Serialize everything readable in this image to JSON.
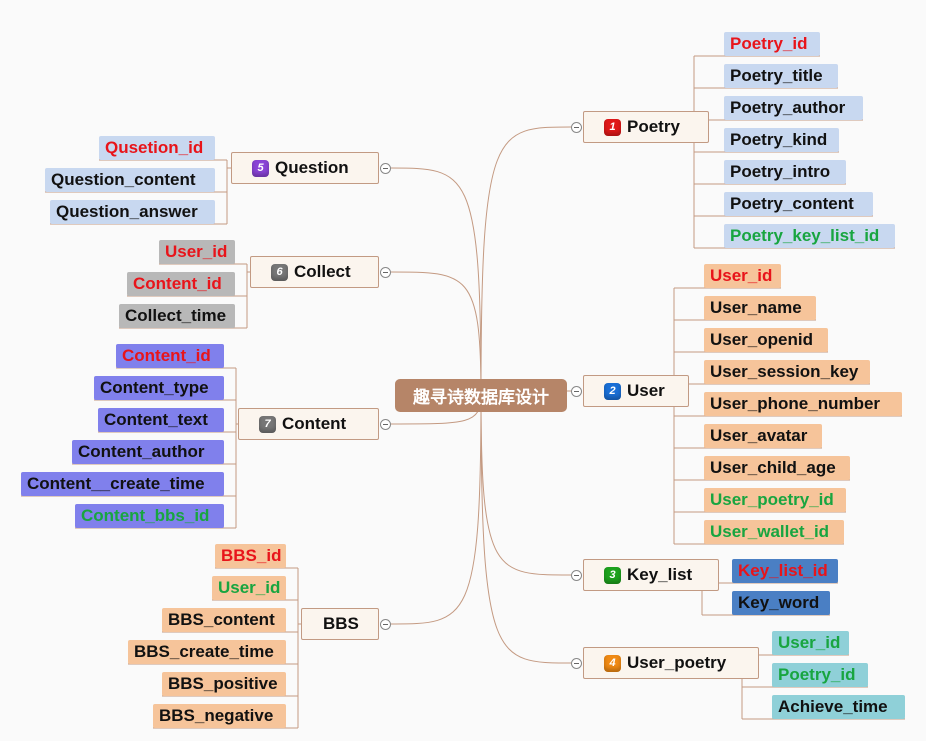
{
  "colors": {
    "line": "#c49a82",
    "root_bg": "#b68568",
    "branch_bg": "#fbf5ee",
    "text_red": "#e8141a",
    "text_green": "#18a540",
    "text_black": "#111111",
    "poetry_leaf_bg": "#c8d8f0",
    "user_leaf_bg": "#f6c49a",
    "keylist_leaf_bg": "#4a7fc4",
    "userpoetry_leaf_bg": "#8fd0d8",
    "question_leaf_bg": "#c8d8f0",
    "collect_leaf_bg": "#b8b8b8",
    "content_leaf_bg": "#8080ec",
    "bbs_leaf_bg": "#f6c49a"
  },
  "root": {
    "label": "趣寻诗数据库设计"
  },
  "branches": {
    "poetry": {
      "number": "1",
      "badge_color": "#e01818",
      "label": "Poetry",
      "fields": [
        {
          "label": "Poetry_id",
          "color": "red"
        },
        {
          "label": "Poetry_title",
          "color": "black"
        },
        {
          "label": "Poetry_author",
          "color": "black"
        },
        {
          "label": "Poetry_kind",
          "color": "black"
        },
        {
          "label": "Poetry_intro",
          "color": "black"
        },
        {
          "label": "Poetry_content",
          "color": "black"
        },
        {
          "label": "Poetry_key_list_id",
          "color": "green"
        }
      ]
    },
    "user": {
      "number": "2",
      "badge_color": "#1a6fd6",
      "label": "User",
      "fields": [
        {
          "label": "User_id",
          "color": "red"
        },
        {
          "label": "User_name",
          "color": "black"
        },
        {
          "label": "User_openid",
          "color": "black"
        },
        {
          "label": "User_session_key",
          "color": "black"
        },
        {
          "label": "User_phone_number",
          "color": "black"
        },
        {
          "label": "User_avatar",
          "color": "black"
        },
        {
          "label": "User_child_age",
          "color": "black"
        },
        {
          "label": "User_poetry_id",
          "color": "green"
        },
        {
          "label": "User_wallet_id",
          "color": "green"
        }
      ]
    },
    "key_list": {
      "number": "3",
      "badge_color": "#1ea21e",
      "label": "Key_list",
      "fields": [
        {
          "label": "Key_list_id",
          "color": "red"
        },
        {
          "label": "Key_word",
          "color": "black"
        }
      ]
    },
    "user_poetry": {
      "number": "4",
      "badge_color": "#f08a14",
      "label": "User_poetry",
      "fields": [
        {
          "label": "User_id",
          "color": "green"
        },
        {
          "label": "Poetry_id",
          "color": "green"
        },
        {
          "label": "Achieve_time",
          "color": "black"
        }
      ]
    },
    "question": {
      "number": "5",
      "badge_color": "#8a44d6",
      "label": "Question",
      "fields": [
        {
          "label": "Qusetion_id",
          "color": "red"
        },
        {
          "label": "Question_content",
          "color": "black"
        },
        {
          "label": "Question_answer",
          "color": "black"
        }
      ]
    },
    "collect": {
      "number": "6",
      "badge_color": "#777777",
      "label": "Collect",
      "fields": [
        {
          "label": "User_id",
          "color": "red"
        },
        {
          "label": "Content_id",
          "color": "red"
        },
        {
          "label": "Collect_time",
          "color": "black"
        }
      ]
    },
    "content": {
      "number": "7",
      "badge_color": "#777777",
      "label": "Content",
      "fields": [
        {
          "label": "Content_id",
          "color": "red"
        },
        {
          "label": "Content_type",
          "color": "black"
        },
        {
          "label": "Content_text",
          "color": "black"
        },
        {
          "label": "Content_author",
          "color": "black"
        },
        {
          "label": "Content__create_time",
          "color": "black"
        },
        {
          "label": "Content_bbs_id",
          "color": "green"
        }
      ]
    },
    "bbs": {
      "number": "",
      "badge_color": "",
      "label": "BBS",
      "fields": [
        {
          "label": "BBS_id",
          "color": "red"
        },
        {
          "label": "User_id",
          "color": "green"
        },
        {
          "label": "BBS_content",
          "color": "black"
        },
        {
          "label": "BBS_create_time",
          "color": "black"
        },
        {
          "label": "BBS_positive",
          "color": "black"
        },
        {
          "label": "BBS_negative",
          "color": "black"
        }
      ]
    }
  }
}
